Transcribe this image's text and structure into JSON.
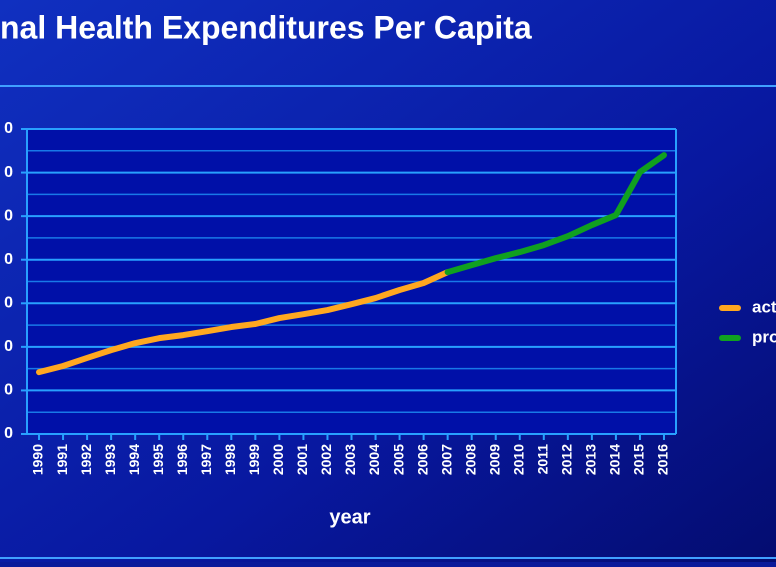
{
  "chart_data": {
    "type": "line",
    "title": "nal Health Expenditures Per Capita",
    "x_label": "year",
    "categories": [
      "1990",
      "1991",
      "1992",
      "1993",
      "1994",
      "1995",
      "1996",
      "1997",
      "1998",
      "1999",
      "2000",
      "2001",
      "2002",
      "2003",
      "2004",
      "2005",
      "2006",
      "2007",
      "2008",
      "2009",
      "2010",
      "2011",
      "2012",
      "2013",
      "2014",
      "2015",
      "2016"
    ],
    "series": [
      {
        "name": "act",
        "color": "#ffa820",
        "values": [
          2840,
          3120,
          3490,
          3850,
          4170,
          4400,
          4540,
          4720,
          4910,
          5050,
          5320,
          5500,
          5690,
          5960,
          6240,
          6610,
          6930,
          7430,
          null,
          null,
          null,
          null,
          null,
          null,
          null,
          null,
          null
        ]
      },
      {
        "name": "pro",
        "color": "#10a020",
        "values": [
          null,
          null,
          null,
          null,
          null,
          null,
          null,
          null,
          null,
          null,
          null,
          null,
          null,
          null,
          null,
          null,
          null,
          7430,
          7750,
          8070,
          8350,
          8670,
          9080,
          9590,
          10050,
          12020,
          12800
        ]
      }
    ],
    "ylim": [
      0,
      14000
    ],
    "yticks": [
      {
        "value": 0,
        "label": "0"
      },
      {
        "value": 2000,
        "label": "0"
      },
      {
        "value": 4000,
        "label": "0"
      },
      {
        "value": 6000,
        "label": "0"
      },
      {
        "value": 8000,
        "label": "0"
      },
      {
        "value": 10000,
        "label": "0"
      },
      {
        "value": 12000,
        "label": "0"
      },
      {
        "value": 14000,
        "label": "0"
      }
    ],
    "minor_yticks": [
      1000,
      3000,
      5000,
      7000,
      9000,
      11000,
      13000
    ],
    "grid": true,
    "legend": "right"
  }
}
